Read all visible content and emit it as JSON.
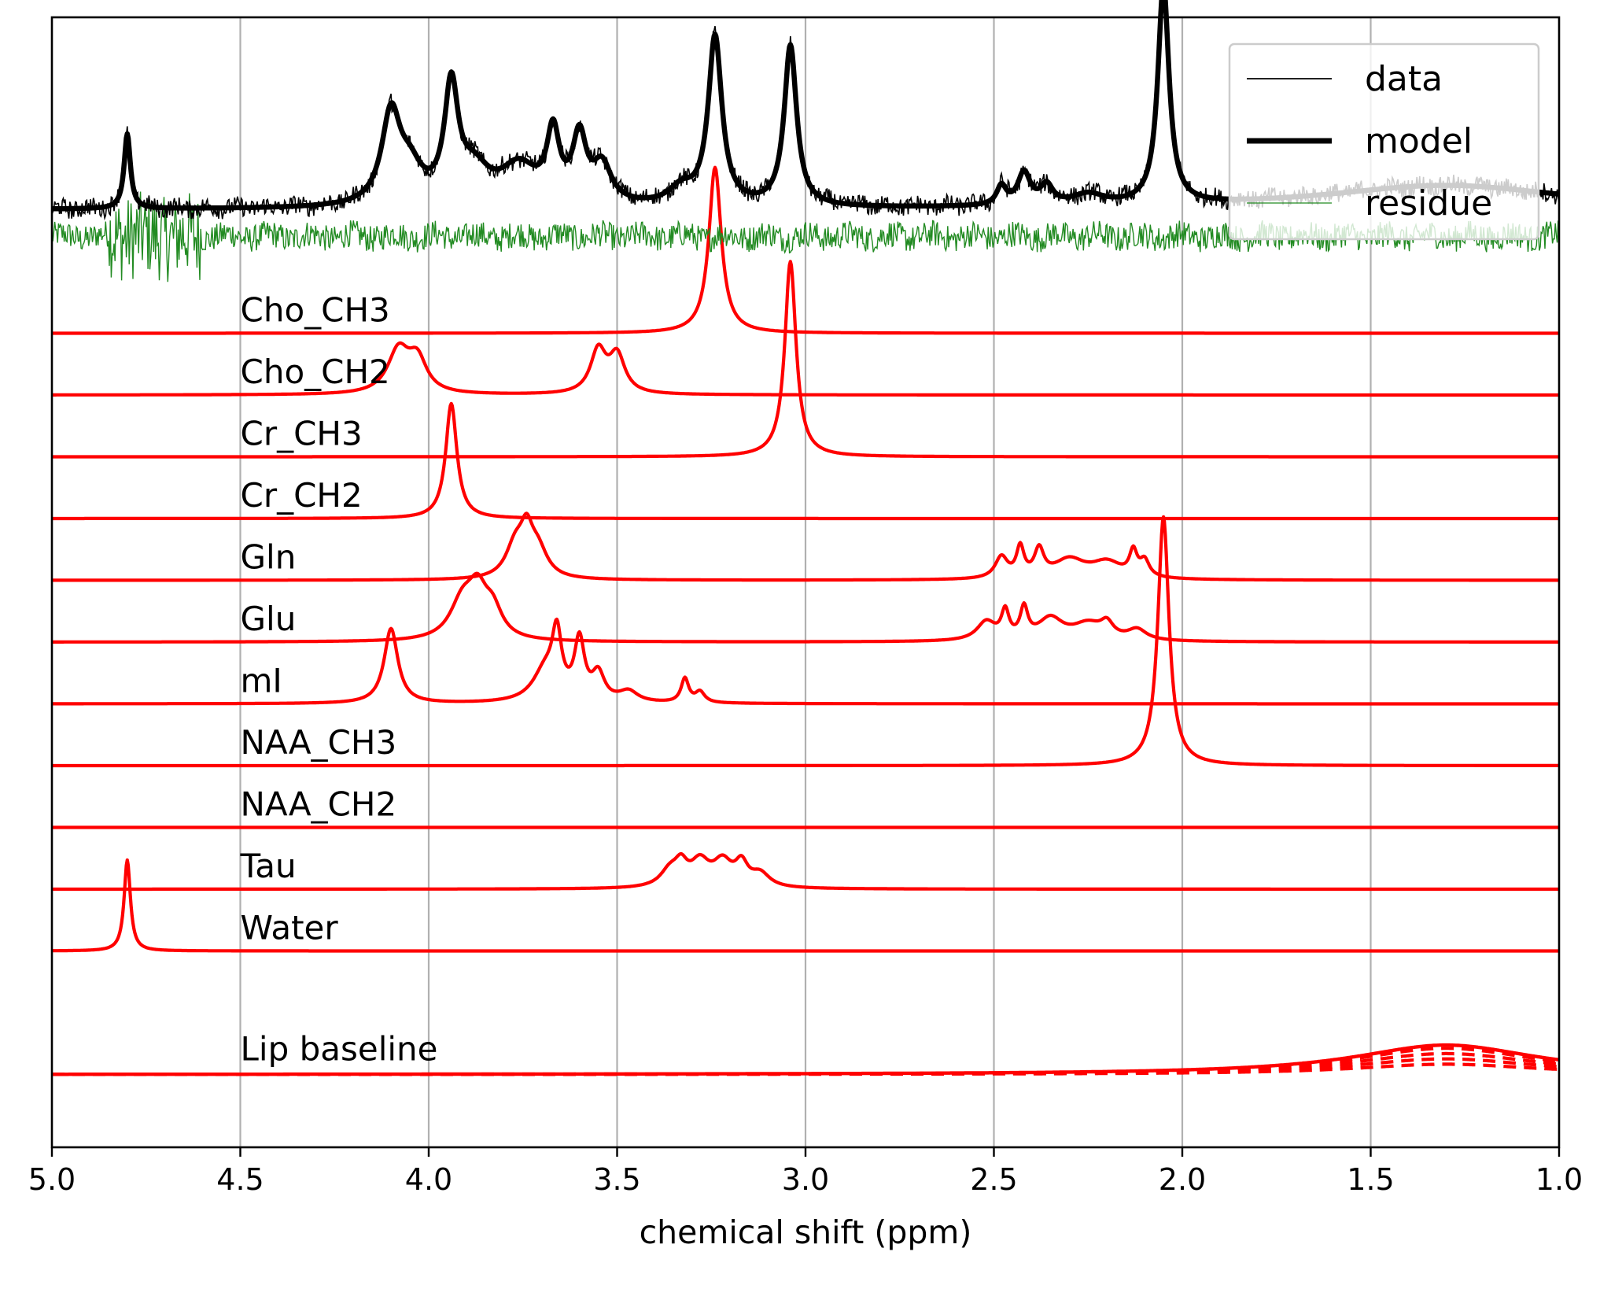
{
  "chart_data": {
    "type": "line",
    "xlabel": "chemical shift (ppm)",
    "xlim": [
      5.0,
      1.0
    ],
    "x_reversed": true,
    "x_ticks": [
      5.0,
      4.5,
      4.0,
      3.5,
      3.0,
      2.5,
      2.0,
      1.5,
      1.0
    ],
    "x_tick_labels": [
      "5.0",
      "4.5",
      "4.0",
      "3.5",
      "3.0",
      "2.5",
      "2.0",
      "1.5",
      "1.0"
    ],
    "y_axis_ticks_shown": false,
    "grid": "vertical-major",
    "legend": {
      "position": "top-right",
      "entries": [
        {
          "label": "data",
          "color": "#000000",
          "style": "thin"
        },
        {
          "label": "model",
          "color": "#000000",
          "style": "thick"
        },
        {
          "label": "residue",
          "color": "#228b22",
          "style": "thin"
        }
      ]
    },
    "colors": {
      "data": "#000000",
      "model": "#000000",
      "residue": "#228b22",
      "components": "#ff0000",
      "grid": "#b0b0b0"
    },
    "top_spectrum": {
      "offset": 0,
      "model_peaks": [
        {
          "ppm": 4.8,
          "amp": 0.28,
          "w": 0.01
        },
        {
          "ppm": 4.1,
          "amp": 0.33,
          "w": 0.03
        },
        {
          "ppm": 4.05,
          "amp": 0.12,
          "w": 0.04
        },
        {
          "ppm": 3.94,
          "amp": 0.42,
          "w": 0.022
        },
        {
          "ppm": 3.88,
          "amp": 0.12,
          "w": 0.05
        },
        {
          "ppm": 3.76,
          "amp": 0.14,
          "w": 0.06
        },
        {
          "ppm": 3.67,
          "amp": 0.25,
          "w": 0.02
        },
        {
          "ppm": 3.6,
          "amp": 0.24,
          "w": 0.022
        },
        {
          "ppm": 3.54,
          "amp": 0.14,
          "w": 0.03
        },
        {
          "ppm": 3.33,
          "amp": 0.06,
          "w": 0.04
        },
        {
          "ppm": 3.24,
          "amp": 0.63,
          "w": 0.022
        },
        {
          "ppm": 3.04,
          "amp": 0.6,
          "w": 0.02
        },
        {
          "ppm": 2.48,
          "amp": 0.07,
          "w": 0.015
        },
        {
          "ppm": 2.42,
          "amp": 0.12,
          "w": 0.02
        },
        {
          "ppm": 2.36,
          "amp": 0.07,
          "w": 0.02
        },
        {
          "ppm": 2.25,
          "amp": 0.04,
          "w": 0.05
        },
        {
          "ppm": 2.05,
          "amp": 0.82,
          "w": 0.018
        },
        {
          "ppm": 1.3,
          "amp": 0.09,
          "w": 0.4
        }
      ]
    },
    "components": [
      {
        "name": "Cho_CH3",
        "offset": 1,
        "peaks": [
          {
            "ppm": 3.24,
            "amp": 0.62,
            "w": 0.02
          }
        ]
      },
      {
        "name": "Cho_CH2",
        "offset": 2,
        "peaks": [
          {
            "ppm": 4.08,
            "amp": 0.16,
            "w": 0.035
          },
          {
            "ppm": 4.03,
            "amp": 0.12,
            "w": 0.03
          },
          {
            "ppm": 3.55,
            "amp": 0.16,
            "w": 0.025
          },
          {
            "ppm": 3.5,
            "amp": 0.14,
            "w": 0.025
          }
        ]
      },
      {
        "name": "Cr_CH3",
        "offset": 3,
        "peaks": [
          {
            "ppm": 3.04,
            "amp": 0.73,
            "w": 0.018
          }
        ]
      },
      {
        "name": "Cr_CH2",
        "offset": 4,
        "peaks": [
          {
            "ppm": 3.94,
            "amp": 0.43,
            "w": 0.018
          }
        ]
      },
      {
        "name": "Gln",
        "offset": 5,
        "peaks": [
          {
            "ppm": 3.77,
            "amp": 0.12,
            "w": 0.03
          },
          {
            "ppm": 3.74,
            "amp": 0.14,
            "w": 0.02
          },
          {
            "ppm": 3.71,
            "amp": 0.1,
            "w": 0.03
          },
          {
            "ppm": 2.48,
            "amp": 0.08,
            "w": 0.02
          },
          {
            "ppm": 2.43,
            "amp": 0.11,
            "w": 0.012
          },
          {
            "ppm": 2.38,
            "amp": 0.1,
            "w": 0.015
          },
          {
            "ppm": 2.3,
            "amp": 0.07,
            "w": 0.05
          },
          {
            "ppm": 2.2,
            "amp": 0.06,
            "w": 0.05
          },
          {
            "ppm": 2.13,
            "amp": 0.09,
            "w": 0.012
          },
          {
            "ppm": 2.1,
            "amp": 0.06,
            "w": 0.015
          }
        ]
      },
      {
        "name": "Glu",
        "offset": 6,
        "peaks": [
          {
            "ppm": 3.91,
            "amp": 0.14,
            "w": 0.04
          },
          {
            "ppm": 3.87,
            "amp": 0.15,
            "w": 0.03
          },
          {
            "ppm": 3.83,
            "amp": 0.1,
            "w": 0.03
          },
          {
            "ppm": 2.52,
            "amp": 0.07,
            "w": 0.03
          },
          {
            "ppm": 2.47,
            "amp": 0.1,
            "w": 0.012
          },
          {
            "ppm": 2.42,
            "amp": 0.11,
            "w": 0.012
          },
          {
            "ppm": 2.35,
            "amp": 0.08,
            "w": 0.04
          },
          {
            "ppm": 2.25,
            "amp": 0.06,
            "w": 0.05
          },
          {
            "ppm": 2.2,
            "amp": 0.05,
            "w": 0.02
          },
          {
            "ppm": 2.12,
            "amp": 0.04,
            "w": 0.03
          }
        ]
      },
      {
        "name": "mI",
        "offset": 7,
        "peaks": [
          {
            "ppm": 4.1,
            "amp": 0.28,
            "w": 0.022
          },
          {
            "ppm": 3.69,
            "amp": 0.12,
            "w": 0.04
          },
          {
            "ppm": 3.66,
            "amp": 0.22,
            "w": 0.015
          },
          {
            "ppm": 3.6,
            "amp": 0.22,
            "w": 0.016
          },
          {
            "ppm": 3.55,
            "amp": 0.1,
            "w": 0.02
          },
          {
            "ppm": 3.47,
            "amp": 0.04,
            "w": 0.03
          },
          {
            "ppm": 3.32,
            "amp": 0.09,
            "w": 0.012
          },
          {
            "ppm": 3.28,
            "amp": 0.04,
            "w": 0.015
          }
        ]
      },
      {
        "name": "NAA_CH3",
        "offset": 8,
        "peaks": [
          {
            "ppm": 2.05,
            "amp": 0.93,
            "w": 0.018
          }
        ]
      },
      {
        "name": "NAA_CH2",
        "offset": 9,
        "peaks": []
      },
      {
        "name": "Tau",
        "offset": 10,
        "peaks": [
          {
            "ppm": 3.36,
            "amp": 0.06,
            "w": 0.03
          },
          {
            "ppm": 3.33,
            "amp": 0.07,
            "w": 0.02
          },
          {
            "ppm": 3.28,
            "amp": 0.09,
            "w": 0.03
          },
          {
            "ppm": 3.22,
            "amp": 0.09,
            "w": 0.03
          },
          {
            "ppm": 3.17,
            "amp": 0.08,
            "w": 0.02
          },
          {
            "ppm": 3.12,
            "amp": 0.05,
            "w": 0.03
          }
        ]
      },
      {
        "name": "Water",
        "offset": 11,
        "peaks": [
          {
            "ppm": 4.8,
            "amp": 0.34,
            "w": 0.01
          }
        ]
      }
    ],
    "baseline": {
      "name": "Lip baseline",
      "offset": 13,
      "peaks": [
        {
          "ppm": 1.3,
          "amp": 0.11,
          "w": 0.3
        }
      ],
      "dashed_variants": 4
    }
  }
}
